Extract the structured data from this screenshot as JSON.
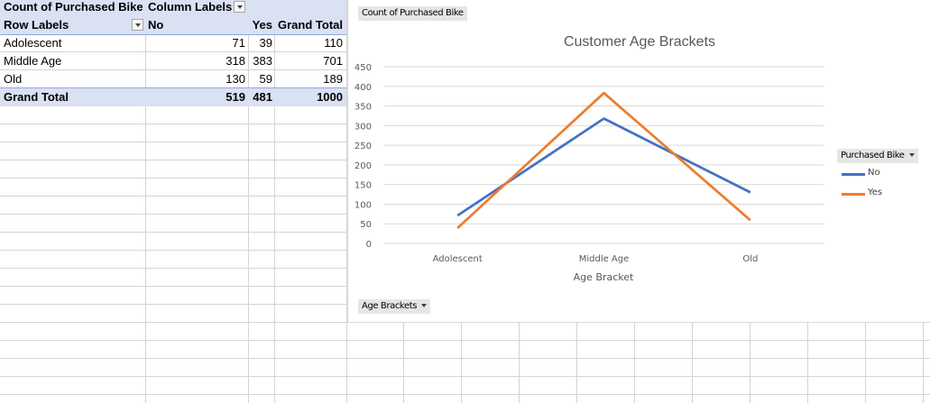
{
  "pivot": {
    "title": "Count of Purchased Bike",
    "column_labels": "Column Labels",
    "headers": {
      "row_labels": "Row Labels",
      "no": "No",
      "yes": "Yes",
      "grand_total": "Grand Total"
    },
    "rows": [
      {
        "label": "Adolescent",
        "no": "71",
        "yes": "39",
        "total": "110"
      },
      {
        "label": "Middle Age",
        "no": "318",
        "yes": "383",
        "total": "701"
      },
      {
        "label": "Old",
        "no": "130",
        "yes": "59",
        "total": "189"
      }
    ],
    "grand_total": {
      "label": "Grand Total",
      "no": "519",
      "yes": "481",
      "total": "1000"
    }
  },
  "chart_controls": {
    "value_field": "Count of Purchased Bike",
    "axis_field": "Age Brackets",
    "legend_field": "Purchased Bike"
  },
  "chart_data": {
    "type": "line",
    "title": "Customer Age Brackets",
    "xlabel": "Age Bracket",
    "ylabel": "",
    "categories": [
      "Adolescent",
      "Middle Age",
      "Old"
    ],
    "series": [
      {
        "name": "No",
        "values": [
          71,
          318,
          130
        ],
        "color": "#4472c4"
      },
      {
        "name": "Yes",
        "values": [
          39,
          383,
          59
        ],
        "color": "#ed7d31"
      }
    ],
    "ylim": [
      0,
      450
    ],
    "yticks": [
      "0",
      "50",
      "100",
      "150",
      "200",
      "250",
      "300",
      "350",
      "400",
      "450"
    ],
    "grid": true,
    "legend_position": "right"
  }
}
